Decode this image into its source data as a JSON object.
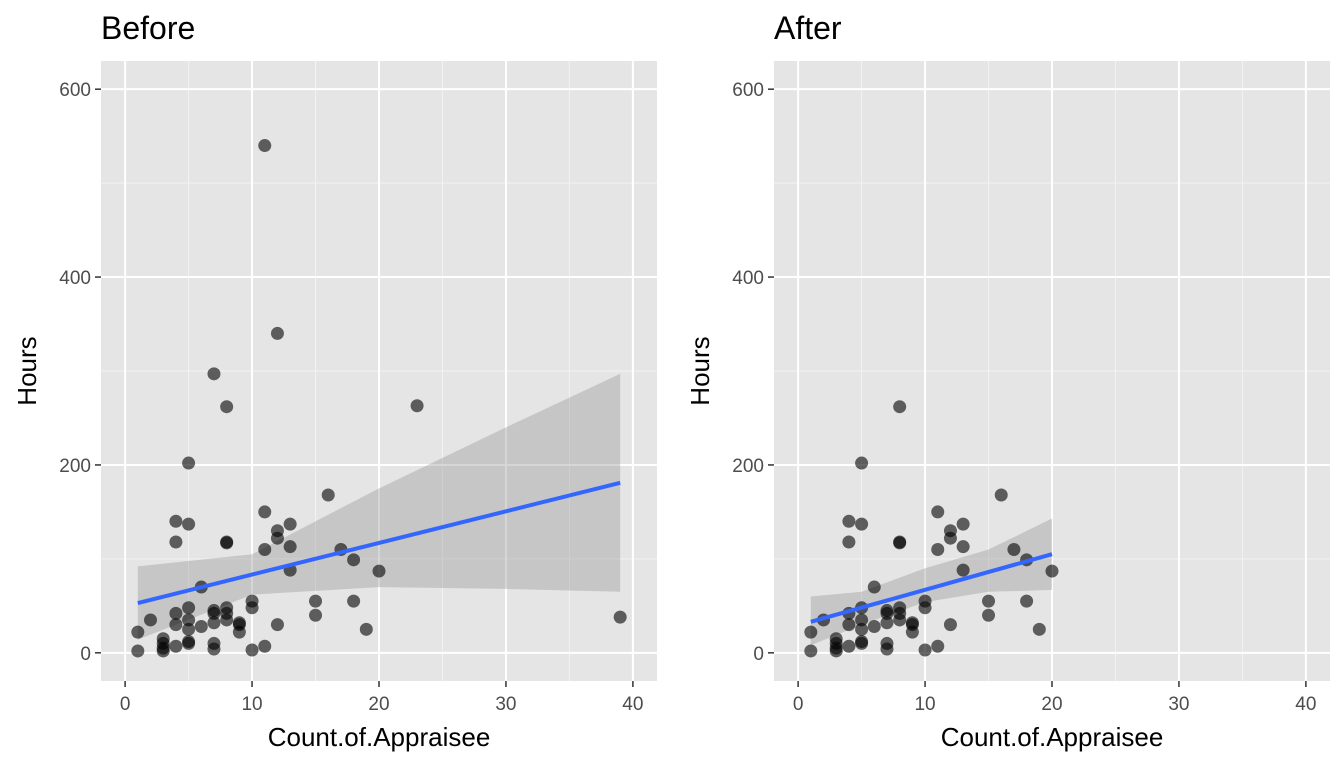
{
  "chart_data": [
    {
      "type": "scatter",
      "title": "Before",
      "xlabel": "Count.of.Appraisee",
      "ylabel": "Hours",
      "xlim": [
        -1.9,
        41.9
      ],
      "ylim": [
        -30,
        630
      ],
      "x_ticks": [
        0,
        10,
        20,
        30,
        40
      ],
      "y_ticks": [
        0,
        200,
        400,
        600
      ],
      "grid": true,
      "points": [
        [
          1,
          2
        ],
        [
          1,
          22
        ],
        [
          2,
          35
        ],
        [
          3,
          2
        ],
        [
          3,
          5
        ],
        [
          3,
          10
        ],
        [
          3,
          15
        ],
        [
          4,
          7
        ],
        [
          4,
          30
        ],
        [
          4,
          42
        ],
        [
          4,
          118
        ],
        [
          4,
          140
        ],
        [
          5,
          10
        ],
        [
          5,
          12
        ],
        [
          5,
          25
        ],
        [
          5,
          35
        ],
        [
          5,
          48
        ],
        [
          5,
          137
        ],
        [
          5,
          202
        ],
        [
          6,
          28
        ],
        [
          6,
          70
        ],
        [
          7,
          4
        ],
        [
          7,
          10
        ],
        [
          7,
          32
        ],
        [
          7,
          42
        ],
        [
          7,
          45
        ],
        [
          7,
          297
        ],
        [
          8,
          35
        ],
        [
          8,
          42
        ],
        [
          8,
          48
        ],
        [
          8,
          117
        ],
        [
          8,
          118
        ],
        [
          8,
          262
        ],
        [
          9,
          22
        ],
        [
          9,
          30
        ],
        [
          9,
          32
        ],
        [
          10,
          3
        ],
        [
          10,
          48
        ],
        [
          10,
          55
        ],
        [
          11,
          7
        ],
        [
          11,
          110
        ],
        [
          11,
          150
        ],
        [
          11,
          540
        ],
        [
          12,
          30
        ],
        [
          12,
          122
        ],
        [
          12,
          130
        ],
        [
          12,
          340
        ],
        [
          13,
          88
        ],
        [
          13,
          113
        ],
        [
          13,
          137
        ],
        [
          15,
          40
        ],
        [
          15,
          55
        ],
        [
          16,
          168
        ],
        [
          17,
          110
        ],
        [
          18,
          55
        ],
        [
          18,
          99
        ],
        [
          19,
          25
        ],
        [
          20,
          87
        ],
        [
          23,
          263
        ],
        [
          39,
          38
        ]
      ],
      "trend": {
        "x": [
          1,
          39
        ],
        "y": [
          53,
          181
        ]
      },
      "band": {
        "x": [
          1,
          10,
          20,
          30,
          39
        ],
        "upper": [
          92,
          105,
          175,
          240,
          297
        ],
        "lower": [
          14,
          62,
          70,
          68,
          65
        ]
      }
    },
    {
      "type": "scatter",
      "title": "After",
      "xlabel": "Count.of.Appraisee",
      "ylabel": "Hours",
      "xlim": [
        -1.9,
        41.9
      ],
      "ylim": [
        -30,
        630
      ],
      "x_ticks": [
        0,
        10,
        20,
        30,
        40
      ],
      "y_ticks": [
        0,
        200,
        400,
        600
      ],
      "grid": true,
      "points": [
        [
          1,
          2
        ],
        [
          1,
          22
        ],
        [
          2,
          35
        ],
        [
          3,
          2
        ],
        [
          3,
          5
        ],
        [
          3,
          10
        ],
        [
          3,
          15
        ],
        [
          4,
          7
        ],
        [
          4,
          30
        ],
        [
          4,
          42
        ],
        [
          4,
          118
        ],
        [
          4,
          140
        ],
        [
          5,
          10
        ],
        [
          5,
          12
        ],
        [
          5,
          25
        ],
        [
          5,
          35
        ],
        [
          5,
          48
        ],
        [
          5,
          137
        ],
        [
          5,
          202
        ],
        [
          6,
          28
        ],
        [
          6,
          70
        ],
        [
          7,
          4
        ],
        [
          7,
          10
        ],
        [
          7,
          32
        ],
        [
          7,
          42
        ],
        [
          7,
          45
        ],
        [
          8,
          35
        ],
        [
          8,
          42
        ],
        [
          8,
          48
        ],
        [
          8,
          117
        ],
        [
          8,
          118
        ],
        [
          8,
          262
        ],
        [
          9,
          22
        ],
        [
          9,
          30
        ],
        [
          9,
          32
        ],
        [
          10,
          3
        ],
        [
          10,
          48
        ],
        [
          10,
          55
        ],
        [
          11,
          7
        ],
        [
          11,
          110
        ],
        [
          11,
          150
        ],
        [
          12,
          30
        ],
        [
          12,
          122
        ],
        [
          12,
          130
        ],
        [
          13,
          88
        ],
        [
          13,
          113
        ],
        [
          13,
          137
        ],
        [
          15,
          40
        ],
        [
          15,
          55
        ],
        [
          16,
          168
        ],
        [
          17,
          110
        ],
        [
          18,
          55
        ],
        [
          18,
          99
        ],
        [
          19,
          25
        ],
        [
          20,
          87
        ]
      ],
      "trend": {
        "x": [
          1,
          20
        ],
        "y": [
          33,
          105
        ]
      },
      "band": {
        "x": [
          1,
          5,
          10,
          15,
          20
        ],
        "upper": [
          60,
          65,
          90,
          110,
          143
        ],
        "lower": [
          8,
          30,
          54,
          65,
          67
        ]
      }
    }
  ]
}
